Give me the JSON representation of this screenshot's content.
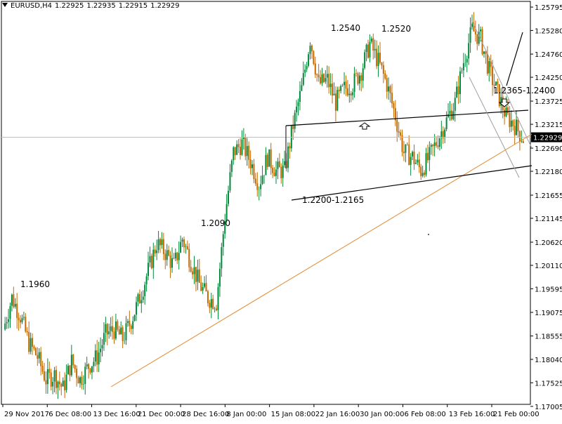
{
  "header": {
    "symbol": "EURUSD,H4",
    "open": "1.22925",
    "high": "1.22935",
    "low": "1.22915",
    "close": "1.22929"
  },
  "colors": {
    "background": "#ffffff",
    "bull": "#008a3a",
    "bear": "#c46a00",
    "trend": "#000000",
    "support": "#e0882a",
    "channel": "#a0a0a0",
    "grid": "#bfbfbf",
    "price_box": "#000000"
  },
  "chart_data": {
    "type": "candlestick",
    "symbol": "EURUSD",
    "timeframe": "H4",
    "ylim": [
      1.1705,
      1.2592
    ],
    "y_ticks": [
      "1.25795",
      "1.25280",
      "1.24760",
      "1.24250",
      "1.23725",
      "1.23215",
      "1.22690",
      "1.22180",
      "1.21655",
      "1.21145",
      "1.20620",
      "1.20110",
      "1.19595",
      "1.19075",
      "1.18555",
      "1.18040",
      "1.17525",
      "1.17005"
    ],
    "x_ticks": [
      "29 Nov 2017",
      "6 Dec 08:00",
      "13 Dec 16:00",
      "21 Dec 00:00",
      "28 Dec 16:00",
      "8 Jan 00:00",
      "15 Jan 08:00",
      "22 Jan 16:00",
      "30 Jan 00:00",
      "6 Feb 08:00",
      "13 Feb 16:00",
      "21 Feb 00:00"
    ],
    "current_price": "1.22929",
    "close_path": [
      {
        "x": "29 Nov 2017",
        "y": 1.187
      },
      {
        "x": "30 Nov 2017",
        "y": 1.194
      },
      {
        "x": "1 Dec 2017",
        "y": 1.19
      },
      {
        "x": "4 Dec 2017",
        "y": 1.184
      },
      {
        "x": "6 Dec 08:00",
        "y": 1.181
      },
      {
        "x": "8 Dec 2017",
        "y": 1.176
      },
      {
        "x": "11 Dec 2017",
        "y": 1.177
      },
      {
        "x": "12 Dec 2017",
        "y": 1.174
      },
      {
        "x": "13 Dec 16:00",
        "y": 1.18
      },
      {
        "x": "15 Dec 2017",
        "y": 1.176
      },
      {
        "x": "18 Dec 2017",
        "y": 1.179
      },
      {
        "x": "19 Dec 2017",
        "y": 1.181
      },
      {
        "x": "20 Dec 2017",
        "y": 1.186
      },
      {
        "x": "21 Dec 00:00",
        "y": 1.187
      },
      {
        "x": "22 Dec 2017",
        "y": 1.185
      },
      {
        "x": "26 Dec 2017",
        "y": 1.189
      },
      {
        "x": "27 Dec 2017",
        "y": 1.194
      },
      {
        "x": "28 Dec 16:00",
        "y": 1.2
      },
      {
        "x": "29 Dec 2017",
        "y": 1.206
      },
      {
        "x": "2 Jan 2018",
        "y": 1.204
      },
      {
        "x": "3 Jan 2018",
        "y": 1.201
      },
      {
        "x": "4 Jan 2018",
        "y": 1.207
      },
      {
        "x": "5 Jan 2018",
        "y": 1.202
      },
      {
        "x": "8 Jan 00:00",
        "y": 1.197
      },
      {
        "x": "9 Jan 2018",
        "y": 1.194
      },
      {
        "x": "10 Jan 2018",
        "y": 1.193
      },
      {
        "x": "12 Jan 2018",
        "y": 1.212
      },
      {
        "x": "13 Jan 2018",
        "y": 1.226
      },
      {
        "x": "15 Jan 08:00",
        "y": 1.228
      },
      {
        "x": "16 Jan 2018",
        "y": 1.224
      },
      {
        "x": "17 Jan 2018",
        "y": 1.219
      },
      {
        "x": "18 Jan 2018",
        "y": 1.225
      },
      {
        "x": "19 Jan 2018",
        "y": 1.222
      },
      {
        "x": "20 Jan 2018",
        "y": 1.222
      },
      {
        "x": "22 Jan 16:00",
        "y": 1.232
      },
      {
        "x": "24 Jan 2018",
        "y": 1.24
      },
      {
        "x": "25 Jan 2018",
        "y": 1.251
      },
      {
        "x": "26 Jan 2018",
        "y": 1.241
      },
      {
        "x": "27 Jan 2018",
        "y": 1.242
      },
      {
        "x": "29 Jan 2018",
        "y": 1.237
      },
      {
        "x": "30 Jan 00:00",
        "y": 1.24
      },
      {
        "x": "31 Jan 2018",
        "y": 1.241
      },
      {
        "x": "1 Feb 2018",
        "y": 1.244
      },
      {
        "x": "2 Feb 2018",
        "y": 1.25
      },
      {
        "x": "3 Feb 2018",
        "y": 1.246
      },
      {
        "x": "5 Feb 2018",
        "y": 1.241
      },
      {
        "x": "6 Feb 08:00",
        "y": 1.234
      },
      {
        "x": "7 Feb 2018",
        "y": 1.226
      },
      {
        "x": "8 Feb 2018",
        "y": 1.225
      },
      {
        "x": "9 Feb 2018",
        "y": 1.222
      },
      {
        "x": "10 Feb 2018",
        "y": 1.225
      },
      {
        "x": "11 Feb 2018",
        "y": 1.229
      },
      {
        "x": "12 Feb 2018",
        "y": 1.233
      },
      {
        "x": "13 Feb 16:00",
        "y": 1.237
      },
      {
        "x": "14 Feb 2018",
        "y": 1.246
      },
      {
        "x": "15 Feb 2018",
        "y": 1.253
      },
      {
        "x": "16 Feb 2018",
        "y": 1.251
      },
      {
        "x": "17 Feb 2018",
        "y": 1.244
      },
      {
        "x": "19 Feb 2018",
        "y": 1.239
      },
      {
        "x": "20 Feb 2018",
        "y": 1.234
      },
      {
        "x": "21 Feb 00:00",
        "y": 1.232
      },
      {
        "x": "22 Feb 2018",
        "y": 1.229
      }
    ],
    "annotations": [
      "1.1960",
      "1.2090",
      "1.2540",
      "1.2520",
      "1.2365-1.2400",
      "1.2200-1.2165"
    ]
  }
}
